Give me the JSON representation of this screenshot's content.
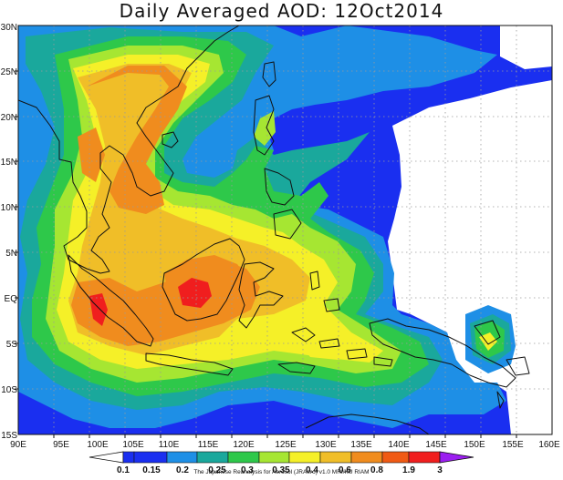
{
  "title": "Daily Averaged AOD: 12Oct2014",
  "credit": "The Japanese Reanalysis for Aerosol (JRAero) v1.0 MRI/KU RIAM",
  "longitude_labels": [
    "90E",
    "95E",
    "100E",
    "105E",
    "110E",
    "115E",
    "120E",
    "125E",
    "130E",
    "135E",
    "140E",
    "145E",
    "150E",
    "155E",
    "160E"
  ],
  "latitude_labels": [
    "30N",
    "25N",
    "20N",
    "15N",
    "10N",
    "5N",
    "EQ",
    "5S",
    "10S",
    "15S"
  ],
  "colorbar": {
    "labels": [
      "0.1",
      "0.15",
      "0.2",
      "0.25",
      "0.3",
      "0.35",
      "0.4",
      "0.6",
      "0.8",
      "1.9",
      "3"
    ],
    "colors": [
      "#ffffff",
      "#1a2ff0",
      "#1e8fe6",
      "#1aa89c",
      "#2ec84a",
      "#a6e632",
      "#f5f028",
      "#f0be28",
      "#f08c1e",
      "#f05a14",
      "#f01e1e",
      "#9b1ef0"
    ]
  },
  "map_colors": {
    "blue": "#1a2ff0",
    "lightblue": "#1e8fe6",
    "teal": "#1aa89c",
    "green": "#2ec84a",
    "lime": "#a6e632",
    "yellow": "#f5f028",
    "gold": "#f0be28",
    "orange": "#f08c1e",
    "red": "#f01e1e",
    "white": "#ffffff"
  }
}
